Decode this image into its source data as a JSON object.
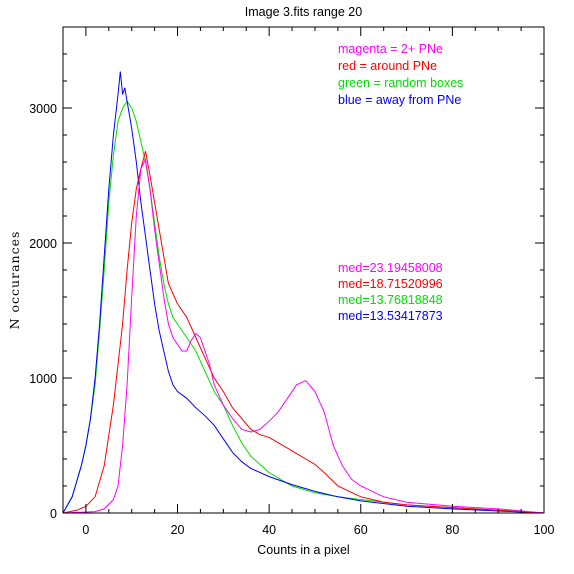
{
  "chart_data": {
    "type": "line",
    "title": "Image 3.fits   range 20",
    "xlabel": "Counts in a pixel",
    "ylabel": "N  occurances",
    "xlim": [
      -5,
      100
    ],
    "ylim": [
      0,
      3600
    ],
    "xticks": [
      0,
      20,
      40,
      60,
      80,
      100
    ],
    "yticks": [
      0,
      1000,
      2000,
      3000
    ],
    "grid": false,
    "legend_position": "top-right",
    "legend": [
      {
        "text": "magenta = 2+ PNe",
        "color": "#ff00ff"
      },
      {
        "text": "red = around PNe",
        "color": "#ff0000"
      },
      {
        "text": "green = random boxes",
        "color": "#00dd00"
      },
      {
        "text": "blue = away from PNe",
        "color": "#0000ff"
      }
    ],
    "annotations": [
      {
        "text": "med=23.19458008",
        "color": "#ff00ff"
      },
      {
        "text": "med=18.71520996",
        "color": "#ff0000"
      },
      {
        "text": "med=13.76818848",
        "color": "#00dd00"
      },
      {
        "text": "med=13.53417873",
        "color": "#0000ff"
      }
    ],
    "series": [
      {
        "color": "#00dd00",
        "x": [
          -5,
          -3,
          -1,
          0,
          1,
          2,
          3,
          4,
          5,
          6,
          7,
          8,
          9,
          10,
          11,
          12,
          13,
          14,
          15,
          16,
          17,
          18,
          19,
          20,
          22,
          24,
          26,
          28,
          30,
          32,
          34,
          36,
          40,
          45,
          50,
          55,
          60,
          70,
          80,
          90,
          100
        ],
        "y": [
          0,
          120,
          350,
          500,
          700,
          950,
          1350,
          1800,
          2300,
          2650,
          2900,
          3000,
          3050,
          3000,
          2900,
          2750,
          2600,
          2400,
          2150,
          1900,
          1700,
          1550,
          1450,
          1400,
          1300,
          1200,
          1050,
          900,
          800,
          650,
          520,
          420,
          300,
          200,
          150,
          120,
          100,
          60,
          40,
          20,
          0
        ]
      },
      {
        "color": "#0000ff",
        "x": [
          -5,
          -3,
          -1,
          0,
          1,
          2,
          3,
          4,
          5,
          6,
          7,
          7.5,
          8,
          8.5,
          9,
          10,
          11,
          12,
          13,
          14,
          15,
          16,
          17,
          18,
          19,
          20,
          22,
          24,
          26,
          28,
          30,
          32,
          34,
          36,
          40,
          45,
          50,
          55,
          60,
          70,
          80,
          90,
          100
        ],
        "y": [
          0,
          120,
          350,
          500,
          700,
          1000,
          1400,
          1900,
          2400,
          2800,
          3100,
          3270,
          3100,
          3150,
          3050,
          2850,
          2600,
          2300,
          2050,
          1800,
          1550,
          1350,
          1200,
          1050,
          950,
          900,
          850,
          780,
          720,
          650,
          550,
          450,
          380,
          330,
          270,
          210,
          160,
          120,
          90,
          50,
          30,
          15,
          0
        ]
      },
      {
        "color": "#ff0000",
        "x": [
          -5,
          -2,
          0,
          2,
          4,
          6,
          8,
          9,
          10,
          11,
          12,
          13,
          14,
          15,
          16,
          17,
          18,
          20,
          22,
          24,
          26,
          28,
          30,
          32,
          34,
          36,
          38,
          40,
          42,
          44,
          46,
          48,
          50,
          52,
          55,
          60,
          65,
          70,
          80,
          90,
          100
        ],
        "y": [
          0,
          20,
          50,
          120,
          350,
          800,
          1400,
          1800,
          2150,
          2400,
          2550,
          2680,
          2500,
          2300,
          2100,
          1900,
          1700,
          1550,
          1450,
          1300,
          1150,
          1000,
          900,
          780,
          700,
          620,
          580,
          560,
          520,
          480,
          440,
          400,
          360,
          300,
          200,
          120,
          80,
          60,
          40,
          20,
          0
        ]
      },
      {
        "color": "#ff00ff",
        "x": [
          -5,
          2,
          4,
          6,
          7,
          8,
          9,
          10,
          11,
          12,
          13,
          14,
          15,
          16,
          17,
          18,
          19,
          20,
          21,
          22,
          23,
          24,
          25,
          26,
          27,
          28,
          30,
          32,
          34,
          36,
          38,
          40,
          42,
          44,
          46,
          48,
          50,
          52,
          54,
          56,
          58,
          60,
          65,
          70,
          80,
          90,
          100
        ],
        "y": [
          0,
          10,
          30,
          100,
          200,
          500,
          950,
          1600,
          2200,
          2550,
          2620,
          2400,
          2100,
          1850,
          1600,
          1400,
          1300,
          1250,
          1200,
          1200,
          1280,
          1330,
          1300,
          1200,
          1100,
          950,
          800,
          700,
          620,
          600,
          620,
          680,
          750,
          850,
          950,
          980,
          900,
          750,
          500,
          350,
          250,
          200,
          120,
          80,
          50,
          30,
          0
        ]
      }
    ]
  }
}
